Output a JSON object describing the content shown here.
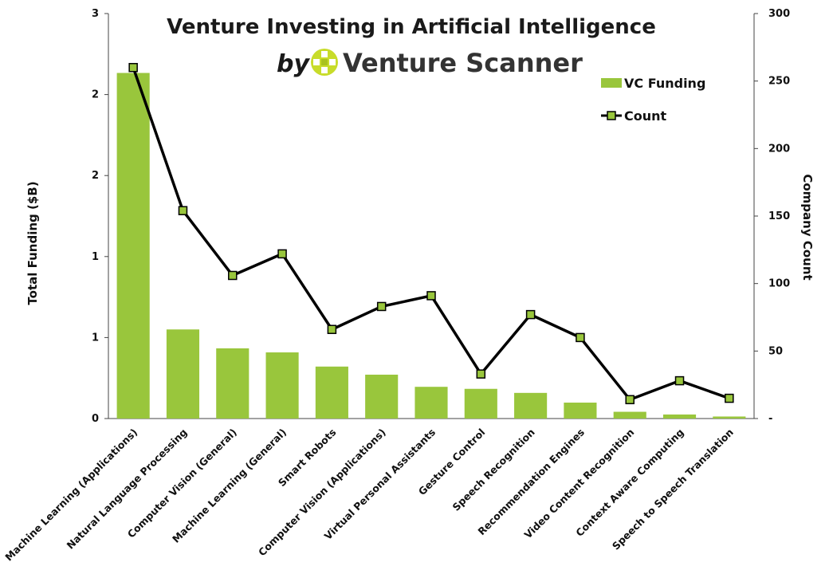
{
  "chart_data": {
    "type": "bar",
    "title": "Venture Investing in Artificial Intelligence",
    "brand": {
      "prefix": "by",
      "name": "Venture Scanner"
    },
    "categories": [
      "Machine Learning (Applications)",
      "Natural Language Processing",
      "Computer Vision (General)",
      "Machine Learning (General)",
      "Smart Robots",
      "Computer Vision (Applications)",
      "Virtual Personal Assistants",
      "Gesture Control",
      "Speech Recognition",
      "Recommendation Engines",
      "Video Content Recognition",
      "Context Aware Computing",
      "Speech to Speech Translation"
    ],
    "series": [
      {
        "name": "VC Funding",
        "type": "bar",
        "axis": "left",
        "color": "#99c63c",
        "values": [
          2.56,
          0.66,
          0.52,
          0.49,
          0.385,
          0.325,
          0.235,
          0.22,
          0.19,
          0.118,
          0.05,
          0.03,
          0.015
        ]
      },
      {
        "name": "Count",
        "type": "line",
        "axis": "right",
        "color": "#000000",
        "marker_color": "#99c63c",
        "values": [
          260,
          154,
          106,
          122,
          66,
          83,
          91,
          33,
          77,
          60,
          14,
          28,
          15
        ]
      }
    ],
    "ylabel": "Total Funding ($B)",
    "ylabel_right": "Company Count",
    "ylim": [
      0,
      3
    ],
    "ylim_right": [
      0,
      300
    ],
    "yticks": [
      "0",
      "1",
      "1",
      "2",
      "2",
      "3"
    ],
    "yticks_right": [
      "-",
      "50",
      "100",
      "150",
      "200",
      "250",
      "300"
    ],
    "legend_position": "top-right",
    "grid": false
  }
}
